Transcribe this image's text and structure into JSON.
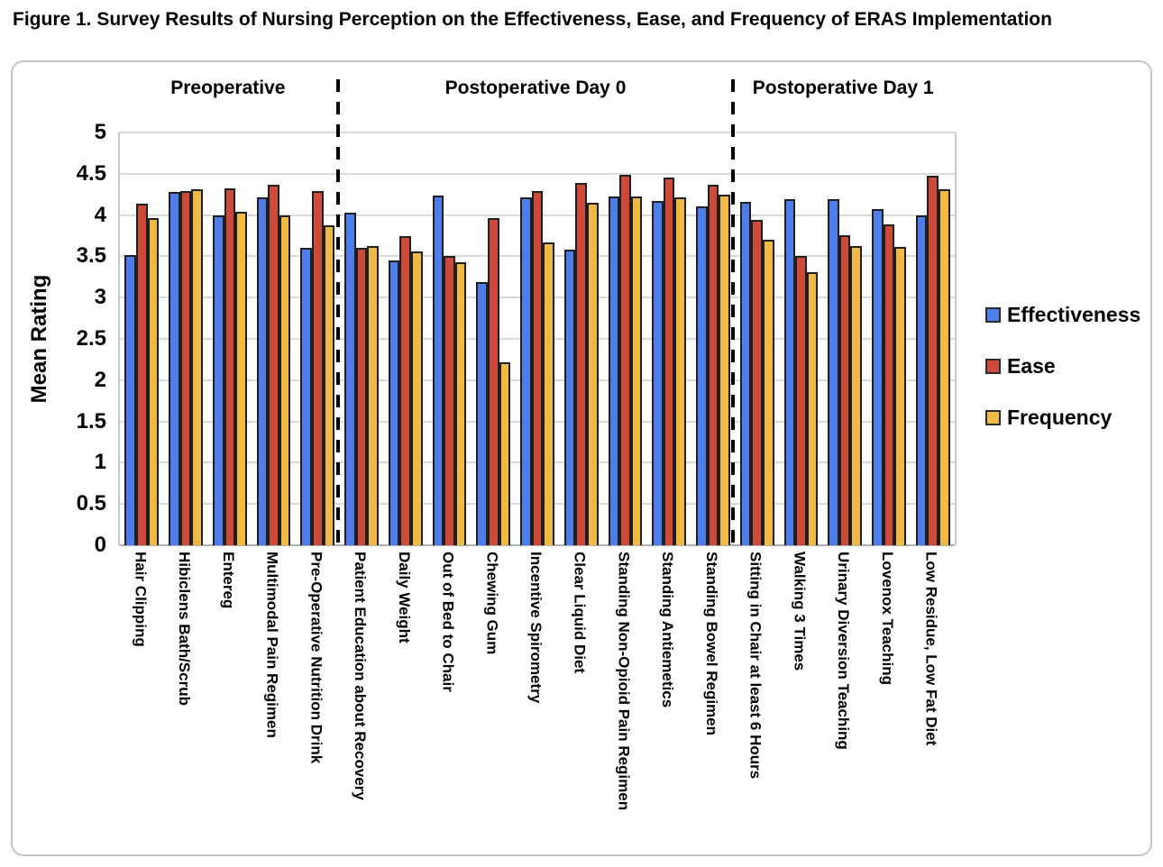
{
  "figure_title": "Figure 1. Survey Results of Nursing Perception on the Effectiveness, Ease, and Frequency of ERAS Implementation",
  "chart_data": {
    "type": "bar",
    "title": "Figure 1. Survey Results of Nursing Perception on the Effectiveness, Ease, and Frequency of ERAS Implementation",
    "ylabel": "Mean Rating",
    "ylim": [
      0,
      5
    ],
    "ytick_step": 0.5,
    "grid": true,
    "legend_position": "right",
    "sections": [
      {
        "label": "Preoperative",
        "start_index": 0,
        "end_index": 4
      },
      {
        "label": "Postoperative Day 0",
        "start_index": 5,
        "end_index": 13
      },
      {
        "label": "Postoperative Day 1",
        "start_index": 14,
        "end_index": 18
      }
    ],
    "categories": [
      "Hair Clipping",
      "Hibiclens Bath/Scrub",
      "Entereg",
      "Multimodal Pain Regimen",
      "Pre-Operative Nutrition Drink",
      "Patient Education about Recovery",
      "Daily Weight",
      "Out of Bed to Chair",
      "Chewing Gum",
      "Incentive Spirometry",
      "Clear Liquid Diet",
      "Standing Non-Opioid Pain Regimen",
      "Standing Antiemetics",
      "Standing Bowel Regimen",
      "Sitting in Chair at least 6 Hours",
      "Walking 3 Times",
      "Urinary Diversion Teaching",
      "Lovenox Teaching",
      "Low Residue, Low Fat Diet"
    ],
    "series": [
      {
        "name": "Effectiveness",
        "color": "#4e7ce9",
        "values": [
          3.52,
          4.28,
          4.0,
          4.21,
          3.6,
          4.03,
          3.45,
          4.24,
          3.19,
          4.21,
          3.58,
          4.23,
          4.17,
          4.11,
          4.16,
          4.19,
          4.19,
          4.07,
          4.0
        ]
      },
      {
        "name": "Ease",
        "color": "#cc4a3a",
        "values": [
          4.14,
          4.29,
          4.32,
          4.37,
          4.29,
          3.6,
          3.75,
          3.5,
          3.96,
          4.29,
          4.39,
          4.49,
          4.45,
          4.37,
          3.94,
          3.5,
          3.76,
          3.89,
          4.48
        ]
      },
      {
        "name": "Frequency",
        "color": "#eeba43",
        "values": [
          3.96,
          4.31,
          4.04,
          4.0,
          3.88,
          3.62,
          3.56,
          3.43,
          2.22,
          3.67,
          4.15,
          4.22,
          4.21,
          4.25,
          3.7,
          3.31,
          3.62,
          3.61,
          4.31
        ]
      }
    ]
  }
}
